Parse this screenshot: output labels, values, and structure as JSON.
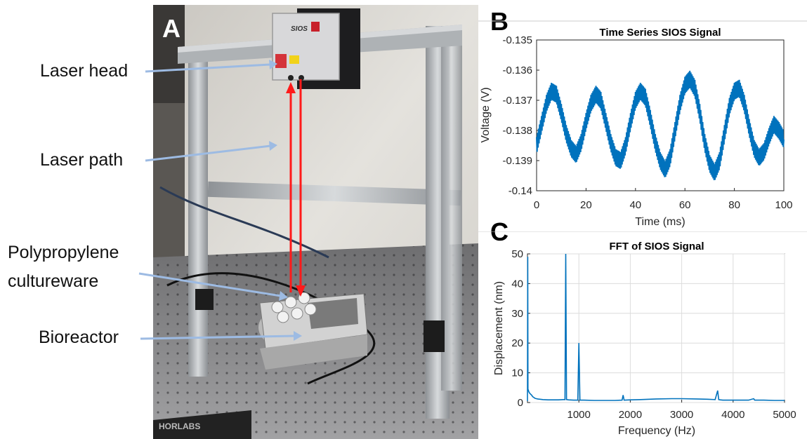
{
  "panels": {
    "a": "A",
    "b": "B",
    "c": "C"
  },
  "annotations": {
    "laser_head": "Laser head",
    "laser_path": "Laser path",
    "cultureware_line1": "Polypropylene",
    "cultureware_line2": "cultureware",
    "bioreactor": "Bioreactor"
  },
  "photo_text": {
    "logo": "SIOS",
    "brand": "HORLABS"
  },
  "colors": {
    "series": "#0072BD",
    "laser": "#ff1a1a",
    "arrow": "#9dbbe3"
  },
  "chart_data": [
    {
      "type": "line",
      "title": "Time Series SIOS Signal",
      "xlabel": "Time (ms)",
      "ylabel": "Voltage (V)",
      "xlim": [
        0,
        100
      ],
      "ylim": [
        -0.14,
        -0.135
      ],
      "xticks": [
        "0",
        "20",
        "40",
        "60",
        "80",
        "100"
      ],
      "yticks": [
        "-0.135",
        "-0.136",
        "-0.137",
        "-0.138",
        "-0.139",
        "-0.14"
      ],
      "grid": false,
      "series": [
        {
          "signal": "sine ~50 Hz with ~1000 Hz ripple",
          "x": [
            0,
            2,
            4,
            6,
            8,
            10,
            12,
            14,
            16,
            18,
            20,
            22,
            24,
            26,
            28,
            30,
            32,
            34,
            36,
            38,
            40,
            42,
            44,
            46,
            48,
            50,
            52,
            54,
            56,
            58,
            60,
            62,
            64,
            66,
            68,
            70,
            72,
            74,
            76,
            78,
            80,
            82,
            84,
            86,
            88,
            90,
            92,
            94,
            96,
            98,
            100
          ],
          "y": [
            -0.1385,
            -0.1378,
            -0.1371,
            -0.1367,
            -0.1368,
            -0.1374,
            -0.1381,
            -0.1386,
            -0.1388,
            -0.1384,
            -0.1377,
            -0.1371,
            -0.1368,
            -0.137,
            -0.1377,
            -0.1384,
            -0.1389,
            -0.139,
            -0.1385,
            -0.1377,
            -0.137,
            -0.1367,
            -0.1369,
            -0.1376,
            -0.1384,
            -0.139,
            -0.1393,
            -0.1389,
            -0.138,
            -0.1371,
            -0.1365,
            -0.1363,
            -0.1366,
            -0.1374,
            -0.1384,
            -0.1391,
            -0.1394,
            -0.139,
            -0.1381,
            -0.1372,
            -0.1367,
            -0.1366,
            -0.1371,
            -0.1379,
            -0.1386,
            -0.1389,
            -0.1387,
            -0.1382,
            -0.1378,
            -0.138,
            -0.1383
          ]
        }
      ]
    },
    {
      "type": "line",
      "title": "FFT of SIOS Signal",
      "xlabel": "Frequency (Hz)",
      "ylabel": "Displacement (nm)",
      "xlim": [
        0,
        5000
      ],
      "ylim": [
        0,
        50
      ],
      "xticks": [
        "1000",
        "2000",
        "3000",
        "4000",
        "5000"
      ],
      "yticks": [
        "0",
        "10",
        "20",
        "30",
        "40",
        "50"
      ],
      "grid": true,
      "series": [
        {
          "x": [
            0,
            5,
            10,
            30,
            50,
            80,
            100,
            150,
            200,
            300,
            400,
            500,
            600,
            700,
            730,
            745,
            760,
            800,
            900,
            980,
            1000,
            1020,
            1100,
            1300,
            1500,
            1700,
            1840,
            1860,
            1880,
            2000,
            2200,
            2500,
            2800,
            3000,
            3300,
            3500,
            3650,
            3700,
            3720,
            3750,
            3800,
            4000,
            4300,
            4400,
            4420,
            4600,
            4800,
            5000
          ],
          "y": [
            0.5,
            49,
            4.5,
            3.5,
            3,
            2.5,
            2,
            1.4,
            1.2,
            1.0,
            0.9,
            0.9,
            0.9,
            1.0,
            1.0,
            50,
            1.0,
            0.9,
            0.8,
            0.8,
            20,
            0.8,
            0.8,
            0.7,
            0.7,
            0.7,
            0.8,
            2.5,
            0.8,
            0.9,
            1.0,
            1.2,
            1.3,
            1.3,
            1.2,
            1.1,
            1.0,
            4.0,
            1.0,
            0.9,
            0.8,
            0.8,
            0.8,
            1.3,
            0.8,
            0.8,
            0.7,
            0.7
          ]
        }
      ]
    }
  ]
}
